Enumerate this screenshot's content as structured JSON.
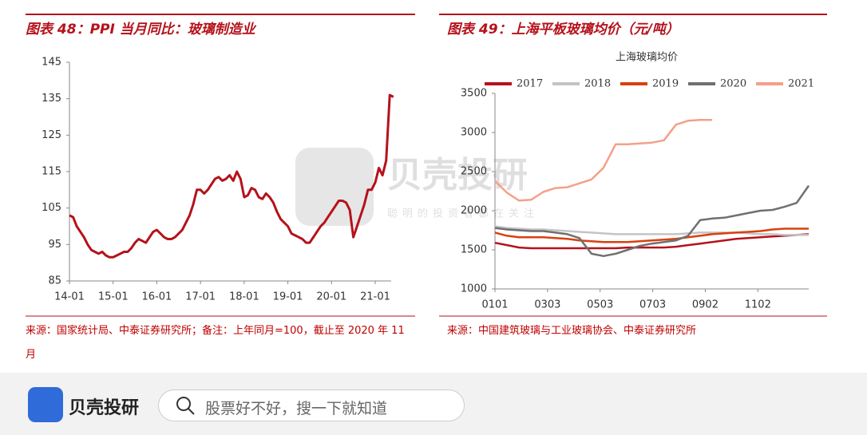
{
  "chart_data": [
    {
      "type": "line",
      "title": "图表 48：PPI 当月同比：玻璃制造业",
      "categories": [
        "14-01",
        null,
        null,
        null,
        null,
        null,
        null,
        null,
        null,
        null,
        null,
        null,
        "15-01",
        null,
        null,
        null,
        null,
        null,
        null,
        null,
        null,
        null,
        null,
        null,
        "16-01",
        null,
        null,
        null,
        null,
        null,
        null,
        null,
        null,
        null,
        null,
        null,
        "17-01",
        null,
        null,
        null,
        null,
        null,
        null,
        null,
        null,
        null,
        null,
        null,
        "18-01",
        null,
        null,
        null,
        null,
        null,
        null,
        null,
        null,
        null,
        null,
        null,
        "19-01",
        null,
        null,
        null,
        null,
        null,
        null,
        null,
        null,
        null,
        null,
        null,
        "20-01",
        null,
        null,
        null,
        null,
        null,
        null,
        null,
        null,
        null,
        null,
        null,
        "21-01",
        null,
        null,
        null,
        null,
        null
      ],
      "values": [
        103,
        102.5,
        100,
        98.5,
        97,
        95,
        93.5,
        93,
        92.5,
        93,
        92,
        91.5,
        91.5,
        92,
        92.5,
        93,
        93,
        94,
        95.5,
        96.5,
        96,
        95.5,
        97,
        98.5,
        99,
        98,
        97,
        96.5,
        96.5,
        97,
        98,
        99,
        101,
        103,
        106,
        110,
        110,
        109,
        110,
        111.5,
        113,
        113.5,
        112.5,
        113,
        114,
        112.5,
        115,
        113,
        108,
        108.5,
        110.5,
        110,
        108,
        107.5,
        109,
        108,
        106.5,
        104,
        102,
        101,
        100,
        98,
        97.5,
        97,
        96.5,
        95.5,
        95.5,
        97,
        98.5,
        100,
        101,
        102.5,
        104,
        105.5,
        107,
        107,
        106.5,
        104.5,
        97,
        100,
        103,
        106,
        110,
        110,
        112,
        116,
        114,
        118,
        136,
        135.5
      ],
      "color": "#b5121b",
      "ylim": [
        85,
        145
      ],
      "yticks": [
        85,
        95,
        105,
        115,
        125,
        135,
        145
      ],
      "grid": false,
      "source": "来源：国家统计局、中泰证券研究所；备注：上年同月=100，截止至 2020 年 11 月"
    },
    {
      "type": "line",
      "title": "图表 49：上海平板玻璃均价（元/吨）",
      "subtitle": "上海玻璃均价",
      "x": [
        1,
        15,
        29,
        43,
        57,
        71,
        85,
        99,
        113,
        127,
        141,
        155,
        169,
        183,
        197,
        211,
        225,
        239,
        253,
        267,
        281,
        295,
        309,
        323,
        337,
        351,
        365
      ],
      "xlim": [
        1,
        365
      ],
      "xticks": [
        {
          "value": 1,
          "label": "0101"
        },
        {
          "value": 62,
          "label": "0303"
        },
        {
          "value": 123,
          "label": "0503"
        },
        {
          "value": 184,
          "label": "0703"
        },
        {
          "value": 245,
          "label": "0902"
        },
        {
          "value": 306,
          "label": "1102"
        }
      ],
      "ylim": [
        1000,
        3500
      ],
      "yticks": [
        1000,
        1500,
        2000,
        2500,
        3000,
        3500
      ],
      "grid": false,
      "legend": "top",
      "series": [
        {
          "name": "2017",
          "color": "#b5121b",
          "values": [
            1590,
            1560,
            1530,
            1520,
            1520,
            1520,
            1520,
            1520,
            1520,
            1520,
            1520,
            1530,
            1530,
            1530,
            1530,
            1540,
            1560,
            1580,
            1600,
            1620,
            1640,
            1650,
            1660,
            1670,
            1680,
            1690,
            1700
          ]
        },
        {
          "name": "2018",
          "color": "#c4c4c4",
          "values": [
            1800,
            1780,
            1770,
            1760,
            1760,
            1750,
            1740,
            1730,
            1720,
            1710,
            1700,
            1700,
            1700,
            1700,
            1700,
            1700,
            1710,
            1720,
            1720,
            1720,
            1720,
            1710,
            1700,
            1700,
            1690,
            1690,
            1690
          ]
        },
        {
          "name": "2019",
          "color": "#d9400f",
          "values": [
            1720,
            1680,
            1660,
            1660,
            1660,
            1650,
            1640,
            1620,
            1610,
            1600,
            1600,
            1600,
            1610,
            1620,
            1630,
            1640,
            1660,
            1680,
            1700,
            1710,
            1720,
            1730,
            1740,
            1760,
            1770,
            1770,
            1770
          ]
        },
        {
          "name": "2020",
          "color": "#707070",
          "values": [
            1780,
            1760,
            1750,
            1740,
            1740,
            1720,
            1700,
            1650,
            1450,
            1420,
            1450,
            1500,
            1550,
            1580,
            1600,
            1620,
            1680,
            1880,
            1900,
            1910,
            1940,
            1970,
            2000,
            2010,
            2050,
            2100,
            2320
          ]
        },
        {
          "name": "2021",
          "color": "#f4a08a",
          "values": [
            2380,
            2230,
            2130,
            2140,
            2240,
            2290,
            2300,
            2350,
            2400,
            2550,
            2850,
            2850,
            2860,
            2870,
            2900,
            3100,
            3150,
            3160,
            3160,
            null,
            null,
            null,
            null,
            null,
            null,
            null,
            null
          ]
        }
      ],
      "source": "来源：中国建筑玻璃与工业玻璃协会、中泰证券研究所"
    }
  ],
  "watermark": {
    "brand": "贝壳投研",
    "slogan": "聪明的投资者都在关注"
  },
  "footer": {
    "brand": "贝壳投研",
    "search_placeholder": "股票好不好，搜一下就知道"
  }
}
